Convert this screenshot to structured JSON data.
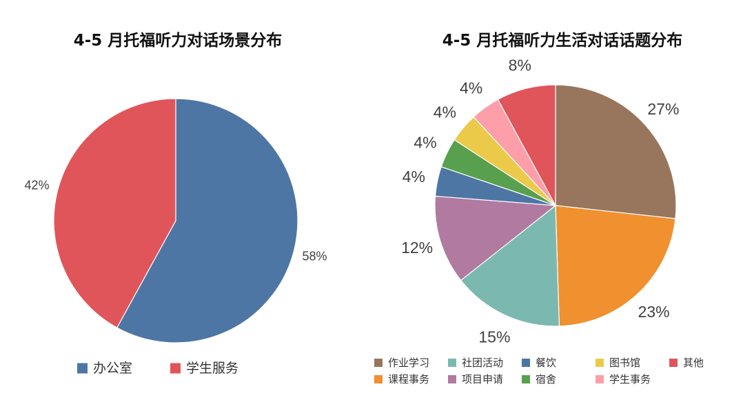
{
  "chart_data": [
    {
      "type": "pie",
      "title": "4-5 月托福听力对话场景分布",
      "categories": [
        "办公室",
        "学生服务"
      ],
      "values": [
        58,
        42
      ],
      "labels": [
        "58%",
        "42%"
      ],
      "colors": [
        "#4e76a4",
        "#e0555a"
      ],
      "legend": "bottom"
    },
    {
      "type": "pie",
      "title": "4-5 月托福听力生活对话话题分布",
      "categories": [
        "作业学习",
        "课程事务",
        "社团活动",
        "项目申请",
        "餐饮",
        "宿舍",
        "图书馆",
        "学生事务",
        "其他"
      ],
      "values": [
        27,
        23,
        15,
        12,
        4,
        4,
        4,
        4,
        8
      ],
      "labels": [
        "27%",
        "23%",
        "15%",
        "12%",
        "4%",
        "4%",
        "4%",
        "4%",
        "8%"
      ],
      "colors": [
        "#98765d",
        "#f0902e",
        "#7bb8b0",
        "#b07aa1",
        "#4e76a4",
        "#58a04e",
        "#ebca49",
        "#fd9ea8",
        "#e0555a"
      ],
      "legend": "bottom"
    }
  ]
}
